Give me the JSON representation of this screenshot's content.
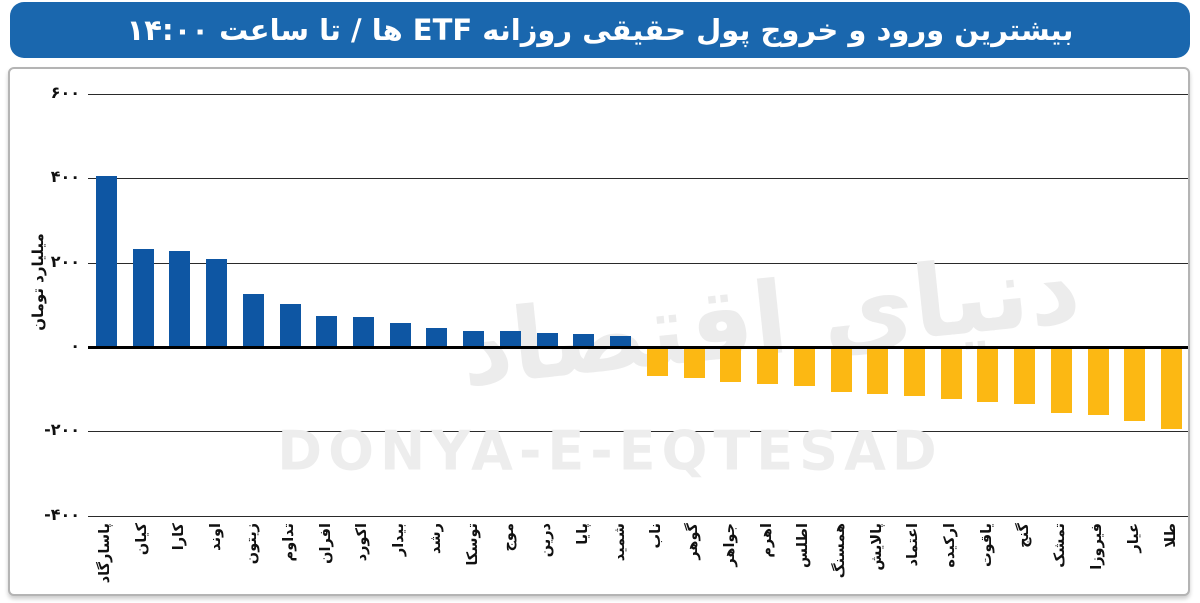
{
  "header": {
    "title": "بیشترین ورود و خروج پول حقیقی روزانه ETF ها / تا ساعت ۱۴:۰۰"
  },
  "watermark": {
    "latin": "DONYA-E-EQTESAD",
    "persian": "دنیای اقتصاد"
  },
  "chart_data": {
    "type": "bar",
    "title": "بیشترین ورود و خروج پول حقیقی روزانه ETF ها / تا ساعت ۱۴:۰۰",
    "ylabel": "میلیارد تومان",
    "ylim": [
      -400,
      600
    ],
    "grid": true,
    "legend": "none",
    "yticks": [
      {
        "value": 600,
        "label": "۶۰۰"
      },
      {
        "value": 400,
        "label": "۴۰۰"
      },
      {
        "value": 200,
        "label": "۲۰۰"
      },
      {
        "value": 0,
        "label": "۰"
      },
      {
        "value": -200,
        "label": "-۲۰۰"
      },
      {
        "value": -400,
        "label": "-۴۰۰"
      }
    ],
    "categories": [
      "پاسارگاد",
      "کیان",
      "کارا",
      "اوند",
      "زیتون",
      "تداوم",
      "افران",
      "اکورد",
      "بیدار",
      "رشد",
      "توسکا",
      "موج",
      "درین",
      "پایا",
      "شمید",
      "ناب",
      "گوهر",
      "جواهر",
      "اهرم",
      "اطلس",
      "همسنگ",
      "پالایش",
      "اعتماد",
      "ارکیده",
      "یاقوت",
      "گنج",
      "تمشک",
      "فیروزا",
      "عیار",
      "طلا"
    ],
    "values": [
      405,
      232,
      227,
      208,
      125,
      101,
      73,
      70,
      57,
      46,
      39,
      38,
      33,
      31,
      27,
      -65,
      -70,
      -80,
      -85,
      -90,
      -104,
      -109,
      -112,
      -120,
      -126,
      -131,
      -154,
      -158,
      -173,
      -192
    ],
    "colors": {
      "inflow": "#0e56a3",
      "outflow": "#fcb813",
      "banner": "#1a67ae",
      "gridline": "#2a2a2a"
    }
  }
}
